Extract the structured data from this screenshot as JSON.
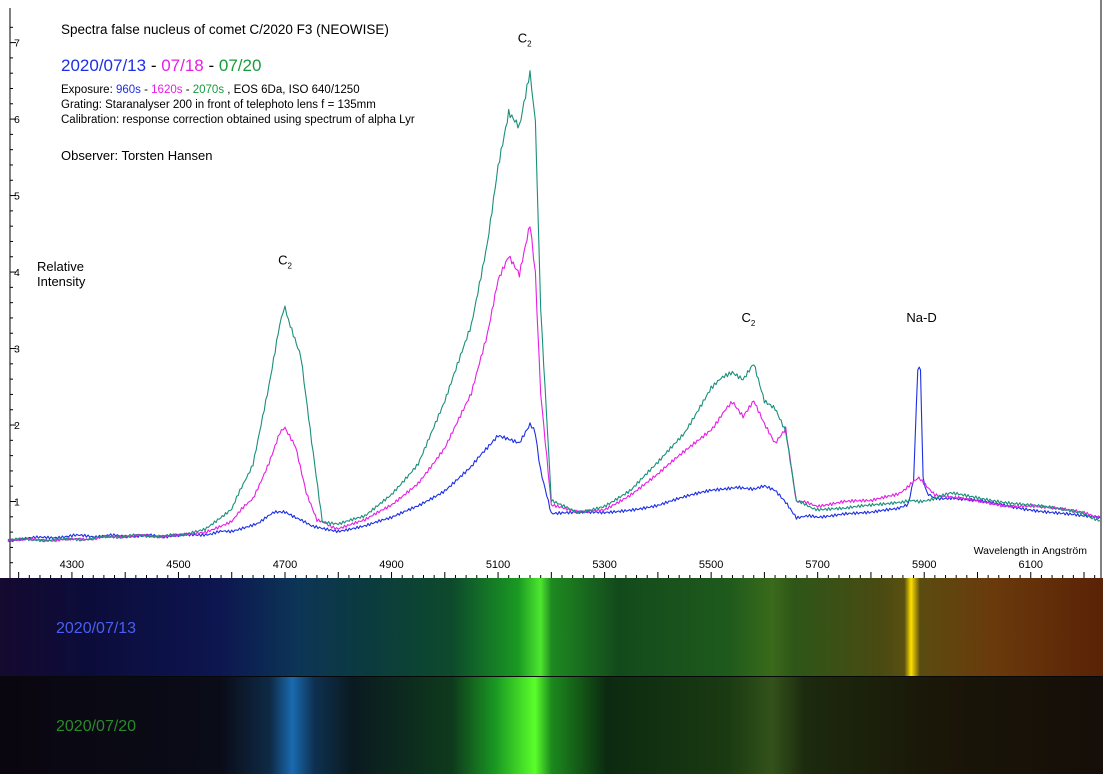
{
  "header": {
    "title": "Spectra false nucleus of comet C/2020 F3 (NEOWISE)",
    "dates": {
      "d1": "2020/07/13",
      "sep1": " - ",
      "d2": "07/18",
      "sep2": " - ",
      "d3": "07/20"
    },
    "exposure": {
      "label": "Exposure: ",
      "e1": "960s",
      "sep1": " - ",
      "e2": "1620s",
      "sep2": " - ",
      "e3": "2070s",
      "rest": " ,  EOS 6Da, ISO 640/1250"
    },
    "grating": "Grating: Staranalyser 200 in front of telephoto lens f = 135mm",
    "calibration": "Calibration: response correction obtained using spectrum of alpha Lyr",
    "observer": "Observer: Torsten Hansen"
  },
  "colors": {
    "series_0713": "#1d2fe6",
    "series_0718": "#e61ee6",
    "series_0720": "#179c3c",
    "series_0720_line": "#1a8f7a",
    "strip_0713_label": "#4c5ef0",
    "strip_0720_label": "#2a8a2a"
  },
  "chart_data": {
    "type": "line",
    "title": "Spectra false nucleus of comet C/2020 F3 (NEOWISE)",
    "xlabel": "Wavelength in Angström",
    "ylabel": "Relative\nIntensity",
    "xlim": [
      4180,
      6230
    ],
    "ylim": [
      0,
      7.4
    ],
    "x_ticks": [
      4300,
      4500,
      4700,
      4900,
      5100,
      5300,
      5500,
      5700,
      5900,
      6100
    ],
    "y_ticks": [
      1,
      2,
      3,
      4,
      5,
      6,
      7
    ],
    "grid": false,
    "legend": "none",
    "annotations": [
      {
        "text": "C",
        "sub": "2",
        "x": 4700,
        "y": 4.1
      },
      {
        "text": "C",
        "sub": "2",
        "x": 5150,
        "y": 7.0
      },
      {
        "text": "C",
        "sub": "2",
        "x": 5570,
        "y": 3.35
      },
      {
        "text": "Na-D",
        "x": 5895,
        "y": 3.35
      }
    ],
    "series": [
      {
        "name": "2020/07/13",
        "color": "#1d2fe6",
        "x": [
          4180,
          4300,
          4400,
          4500,
          4560,
          4600,
          4650,
          4680,
          4700,
          4720,
          4750,
          4800,
          4850,
          4900,
          4950,
          5000,
          5050,
          5080,
          5100,
          5120,
          5140,
          5160,
          5170,
          5180,
          5200,
          5250,
          5300,
          5350,
          5400,
          5450,
          5500,
          5550,
          5580,
          5600,
          5620,
          5640,
          5660,
          5700,
          5750,
          5800,
          5850,
          5870,
          5880,
          5888,
          5893,
          5898,
          5905,
          5920,
          5950,
          6000,
          6050,
          6100,
          6150,
          6200,
          6230
        ],
        "y": [
          0.5,
          0.55,
          0.55,
          0.55,
          0.58,
          0.62,
          0.72,
          0.85,
          0.85,
          0.78,
          0.68,
          0.62,
          0.68,
          0.78,
          0.95,
          1.15,
          1.45,
          1.7,
          1.85,
          1.8,
          1.75,
          2.0,
          1.9,
          1.4,
          0.85,
          0.85,
          0.85,
          0.9,
          0.95,
          1.05,
          1.15,
          1.2,
          1.15,
          1.2,
          1.15,
          1.0,
          0.8,
          0.8,
          0.85,
          0.85,
          0.9,
          0.95,
          1.3,
          2.75,
          2.7,
          1.3,
          1.1,
          1.05,
          1.05,
          1.0,
          0.95,
          0.9,
          0.85,
          0.8,
          0.8
        ]
      },
      {
        "name": "07/18",
        "color": "#e61ee6",
        "x": [
          4180,
          4300,
          4400,
          4500,
          4550,
          4600,
          4640,
          4670,
          4690,
          4700,
          4720,
          4740,
          4760,
          4800,
          4850,
          4900,
          4950,
          5000,
          5050,
          5080,
          5100,
          5120,
          5140,
          5160,
          5170,
          5180,
          5200,
          5250,
          5300,
          5350,
          5400,
          5450,
          5500,
          5540,
          5560,
          5580,
          5600,
          5620,
          5640,
          5660,
          5700,
          5750,
          5800,
          5850,
          5890,
          5920,
          5950,
          6000,
          6050,
          6100,
          6150,
          6200,
          6230
        ],
        "y": [
          0.5,
          0.5,
          0.55,
          0.55,
          0.6,
          0.75,
          1.05,
          1.5,
          1.9,
          1.95,
          1.7,
          1.1,
          0.75,
          0.65,
          0.75,
          0.95,
          1.25,
          1.7,
          2.4,
          3.2,
          3.9,
          4.2,
          3.95,
          4.6,
          4.0,
          2.4,
          0.95,
          0.85,
          0.9,
          1.1,
          1.35,
          1.65,
          1.95,
          2.3,
          2.1,
          2.3,
          2.0,
          1.75,
          1.95,
          1.0,
          0.95,
          1.0,
          1.0,
          1.1,
          1.3,
          1.1,
          1.05,
          1.0,
          0.95,
          0.95,
          0.9,
          0.85,
          0.8
        ]
      },
      {
        "name": "07/20",
        "color": "#1a8f7a",
        "x": [
          4180,
          4300,
          4400,
          4500,
          4550,
          4600,
          4640,
          4670,
          4690,
          4700,
          4710,
          4730,
          4750,
          4770,
          4800,
          4850,
          4900,
          4950,
          5000,
          5050,
          5080,
          5100,
          5120,
          5140,
          5160,
          5170,
          5180,
          5200,
          5250,
          5300,
          5350,
          5400,
          5450,
          5500,
          5540,
          5560,
          5580,
          5600,
          5620,
          5640,
          5660,
          5700,
          5750,
          5800,
          5850,
          5890,
          5920,
          5950,
          6000,
          6050,
          6100,
          6150,
          6200,
          6230
        ],
        "y": [
          0.5,
          0.5,
          0.55,
          0.55,
          0.65,
          0.9,
          1.5,
          2.5,
          3.3,
          3.55,
          3.3,
          2.9,
          1.8,
          0.75,
          0.7,
          0.8,
          1.1,
          1.5,
          2.3,
          3.3,
          4.4,
          5.4,
          6.1,
          5.9,
          6.6,
          6.0,
          3.5,
          1.0,
          0.85,
          0.95,
          1.15,
          1.5,
          1.9,
          2.5,
          2.7,
          2.6,
          2.8,
          2.3,
          2.2,
          1.9,
          1.0,
          0.9,
          0.9,
          0.95,
          1.0,
          1.0,
          1.05,
          1.1,
          1.05,
          1.0,
          0.95,
          0.9,
          0.85,
          0.75
        ]
      }
    ]
  },
  "strips": {
    "top_label": "2020/07/13",
    "bottom_label": "2020/07/20"
  }
}
